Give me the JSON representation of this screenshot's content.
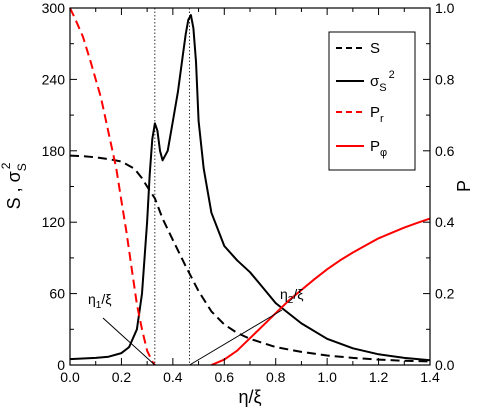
{
  "chart_data": {
    "type": "line",
    "xlabel_main": "η/ξ",
    "ylabel_left_main": "S ,  σ",
    "ylabel_left_sub": "S",
    "ylabel_left_sup": "2",
    "ylabel_right": "P",
    "xlim": [
      0.0,
      1.4
    ],
    "ylim_left": [
      0,
      300
    ],
    "ylim_right": [
      0,
      1.0
    ],
    "x_ticks": [
      "0.0",
      "0.2",
      "0.4",
      "0.6",
      "0.8",
      "1.0",
      "1.2",
      "1.4"
    ],
    "y_left_ticks": [
      "0",
      "60",
      "120",
      "180",
      "240",
      "300"
    ],
    "y_right_ticks": [
      "0.0",
      "0.2",
      "0.4",
      "0.6",
      "0.8",
      "1.0"
    ],
    "grid": false,
    "legend_position": "top-right",
    "legend": [
      {
        "id": "S",
        "main": "S",
        "sub": "",
        "sup": ""
      },
      {
        "id": "sigma",
        "main": "σ",
        "sub": "S",
        "sup": "2"
      },
      {
        "id": "Pr",
        "main": "P",
        "sub": "r",
        "sup": ""
      },
      {
        "id": "Pphi",
        "main": "P",
        "sub": "φ",
        "sup": ""
      }
    ],
    "vlines_x": [
      0.33,
      0.465
    ],
    "annotations": [
      {
        "id": "eta1",
        "main": "η",
        "sub": "1",
        "rest": "/ξ",
        "points_to_x": 0.33
      },
      {
        "id": "eta2",
        "main": "η",
        "sub": "2",
        "rest": "/ξ",
        "points_to_x": 0.465
      }
    ],
    "series": [
      {
        "id": "S",
        "name": "S",
        "axis": "left",
        "color": "#000000",
        "dash": "dashed",
        "x": [
          0.0,
          0.05,
          0.1,
          0.15,
          0.2,
          0.25,
          0.28,
          0.3,
          0.33,
          0.36,
          0.4,
          0.45,
          0.5,
          0.55,
          0.6,
          0.65,
          0.7,
          0.8,
          0.9,
          1.0,
          1.1,
          1.2,
          1.3,
          1.4
        ],
        "y": [
          176,
          175.5,
          174.5,
          173,
          171,
          165,
          157,
          150,
          140,
          123,
          105,
          83,
          62,
          45,
          34,
          27,
          22,
          15,
          11,
          8,
          6,
          4.5,
          3.5,
          3
        ]
      },
      {
        "id": "sigma",
        "name": "σS²",
        "axis": "left",
        "color": "#000000",
        "dash": "solid",
        "x": [
          0.0,
          0.05,
          0.1,
          0.15,
          0.2,
          0.23,
          0.26,
          0.28,
          0.3,
          0.31,
          0.32,
          0.33,
          0.34,
          0.35,
          0.36,
          0.38,
          0.4,
          0.42,
          0.44,
          0.45,
          0.46,
          0.47,
          0.48,
          0.49,
          0.5,
          0.52,
          0.55,
          0.6,
          0.65,
          0.7,
          0.75,
          0.8,
          0.9,
          1.0,
          1.1,
          1.2,
          1.3,
          1.4
        ],
        "y": [
          5,
          5.5,
          6,
          7,
          10,
          15,
          30,
          60,
          120,
          160,
          190,
          203,
          197,
          180,
          172,
          180,
          205,
          230,
          262,
          278,
          290,
          294,
          283,
          255,
          205,
          165,
          128,
          100,
          88,
          78,
          65,
          52,
          35,
          22,
          14,
          9,
          6,
          4
        ]
      },
      {
        "id": "Pr",
        "name": "Pr",
        "axis": "right",
        "color": "#ff0000",
        "dash": "dashed",
        "x": [
          0.0,
          0.02,
          0.05,
          0.08,
          0.1,
          0.12,
          0.15,
          0.18,
          0.2,
          0.22,
          0.24,
          0.26,
          0.28,
          0.3,
          0.32,
          0.33
        ],
        "y": [
          1.0,
          0.97,
          0.92,
          0.85,
          0.8,
          0.75,
          0.65,
          0.55,
          0.46,
          0.37,
          0.27,
          0.17,
          0.1,
          0.04,
          0.01,
          0.0
        ]
      },
      {
        "id": "Pphi",
        "name": "Pφ",
        "axis": "right",
        "color": "#ff0000",
        "dash": "solid",
        "x": [
          0.55,
          0.6,
          0.65,
          0.7,
          0.75,
          0.8,
          0.85,
          0.9,
          0.95,
          1.0,
          1.05,
          1.1,
          1.15,
          1.2,
          1.25,
          1.3,
          1.35,
          1.4
        ],
        "y": [
          0.0,
          0.015,
          0.04,
          0.075,
          0.11,
          0.145,
          0.18,
          0.21,
          0.24,
          0.268,
          0.293,
          0.315,
          0.335,
          0.355,
          0.37,
          0.385,
          0.398,
          0.41
        ]
      }
    ]
  }
}
